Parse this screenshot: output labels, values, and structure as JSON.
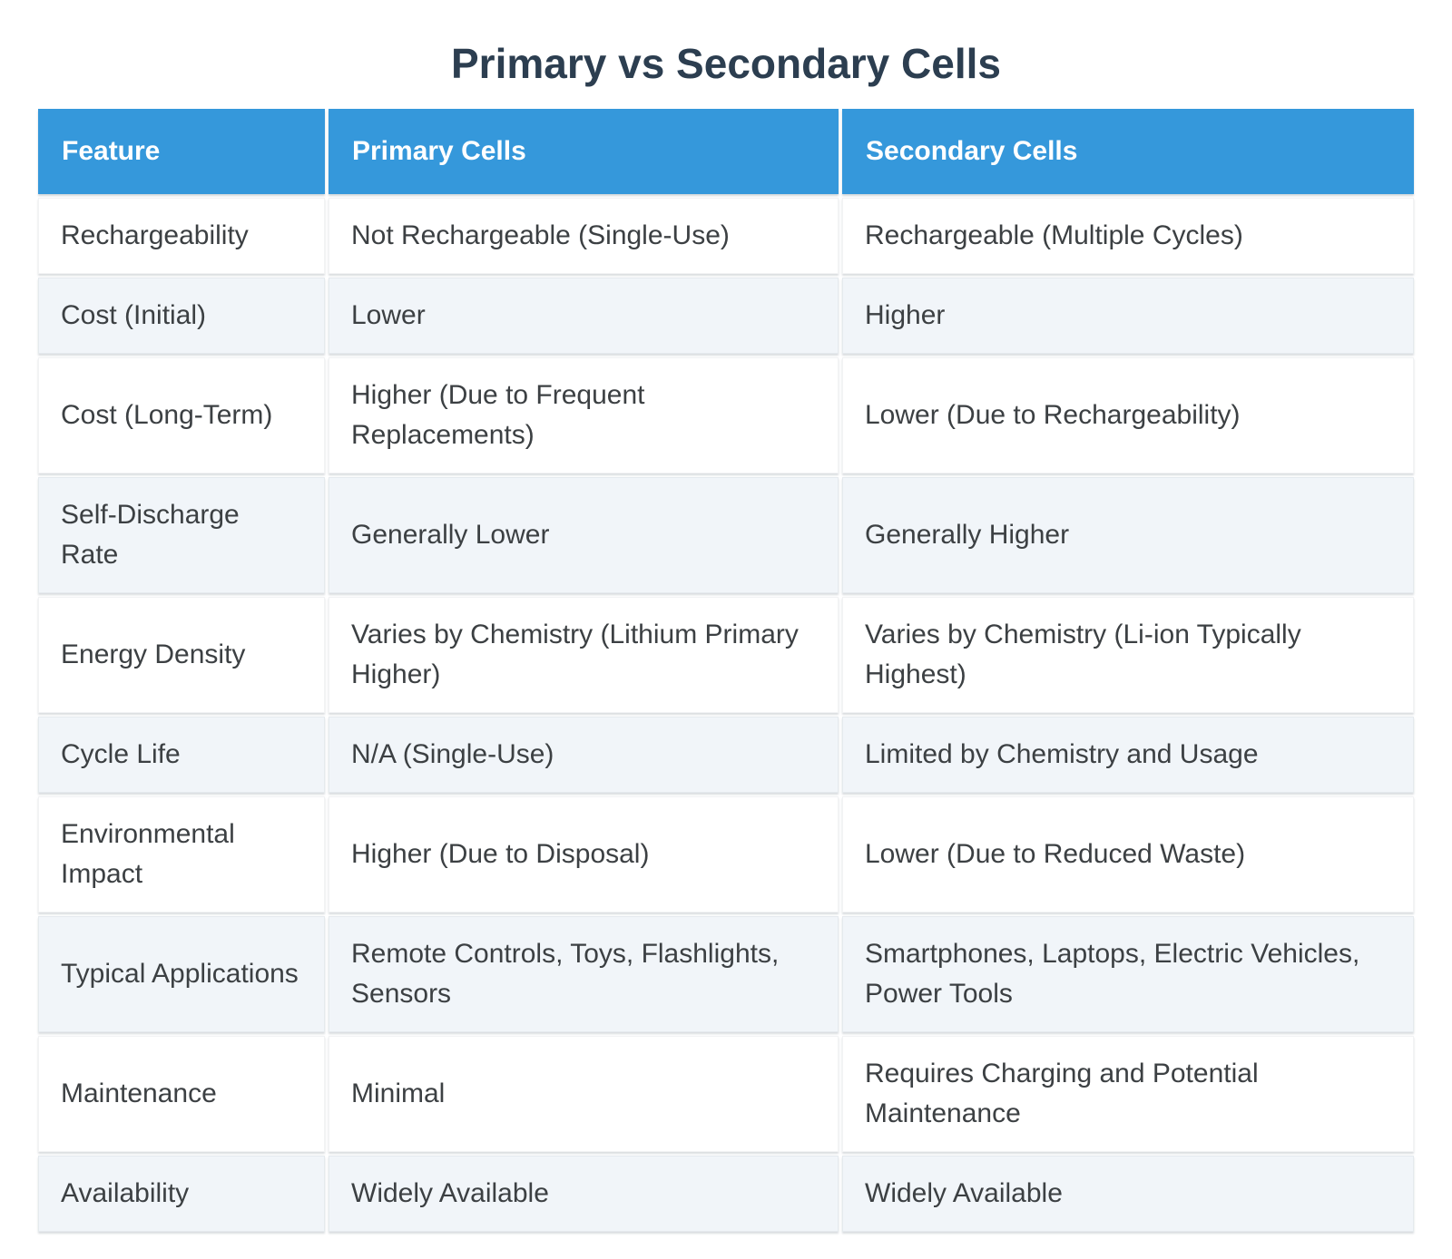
{
  "colors": {
    "page-bg": "#ffffff",
    "title-text": "#2c3e50",
    "header-bg": "#3598db",
    "header-text": "#ffffff",
    "row-bg": "#ffffff",
    "row-alt-bg": "#f1f5f9",
    "body-text": "#3c4043"
  },
  "chart_data": {
    "type": "table",
    "title": "Primary vs Secondary Cells",
    "columns": [
      "Feature",
      "Primary Cells",
      "Secondary Cells"
    ],
    "rows": [
      {
        "feature": "Rechargeability",
        "primary": "Not Rechargeable (Single-Use)",
        "secondary": "Rechargeable (Multiple Cycles)"
      },
      {
        "feature": "Cost (Initial)",
        "primary": "Lower",
        "secondary": "Higher"
      },
      {
        "feature": "Cost (Long-Term)",
        "primary": "Higher (Due to Frequent Replacements)",
        "secondary": "Lower (Due to Rechargeability)"
      },
      {
        "feature": "Self-Discharge Rate",
        "primary": "Generally Lower",
        "secondary": "Generally Higher"
      },
      {
        "feature": "Energy Density",
        "primary": "Varies by Chemistry (Lithium Primary Higher)",
        "secondary": "Varies by Chemistry (Li-ion Typically Highest)"
      },
      {
        "feature": "Cycle Life",
        "primary": "N/A (Single-Use)",
        "secondary": "Limited by Chemistry and Usage"
      },
      {
        "feature": "Environmental Impact",
        "primary": "Higher (Due to Disposal)",
        "secondary": "Lower (Due to Reduced Waste)"
      },
      {
        "feature": "Typical Applications",
        "primary": "Remote Controls, Toys, Flashlights, Sensors",
        "secondary": "Smartphones, Laptops, Electric Vehicles, Power Tools"
      },
      {
        "feature": "Maintenance",
        "primary": "Minimal",
        "secondary": "Requires Charging and Potential Maintenance"
      },
      {
        "feature": "Availability",
        "primary": "Widely Available",
        "secondary": "Widely Available"
      }
    ]
  }
}
